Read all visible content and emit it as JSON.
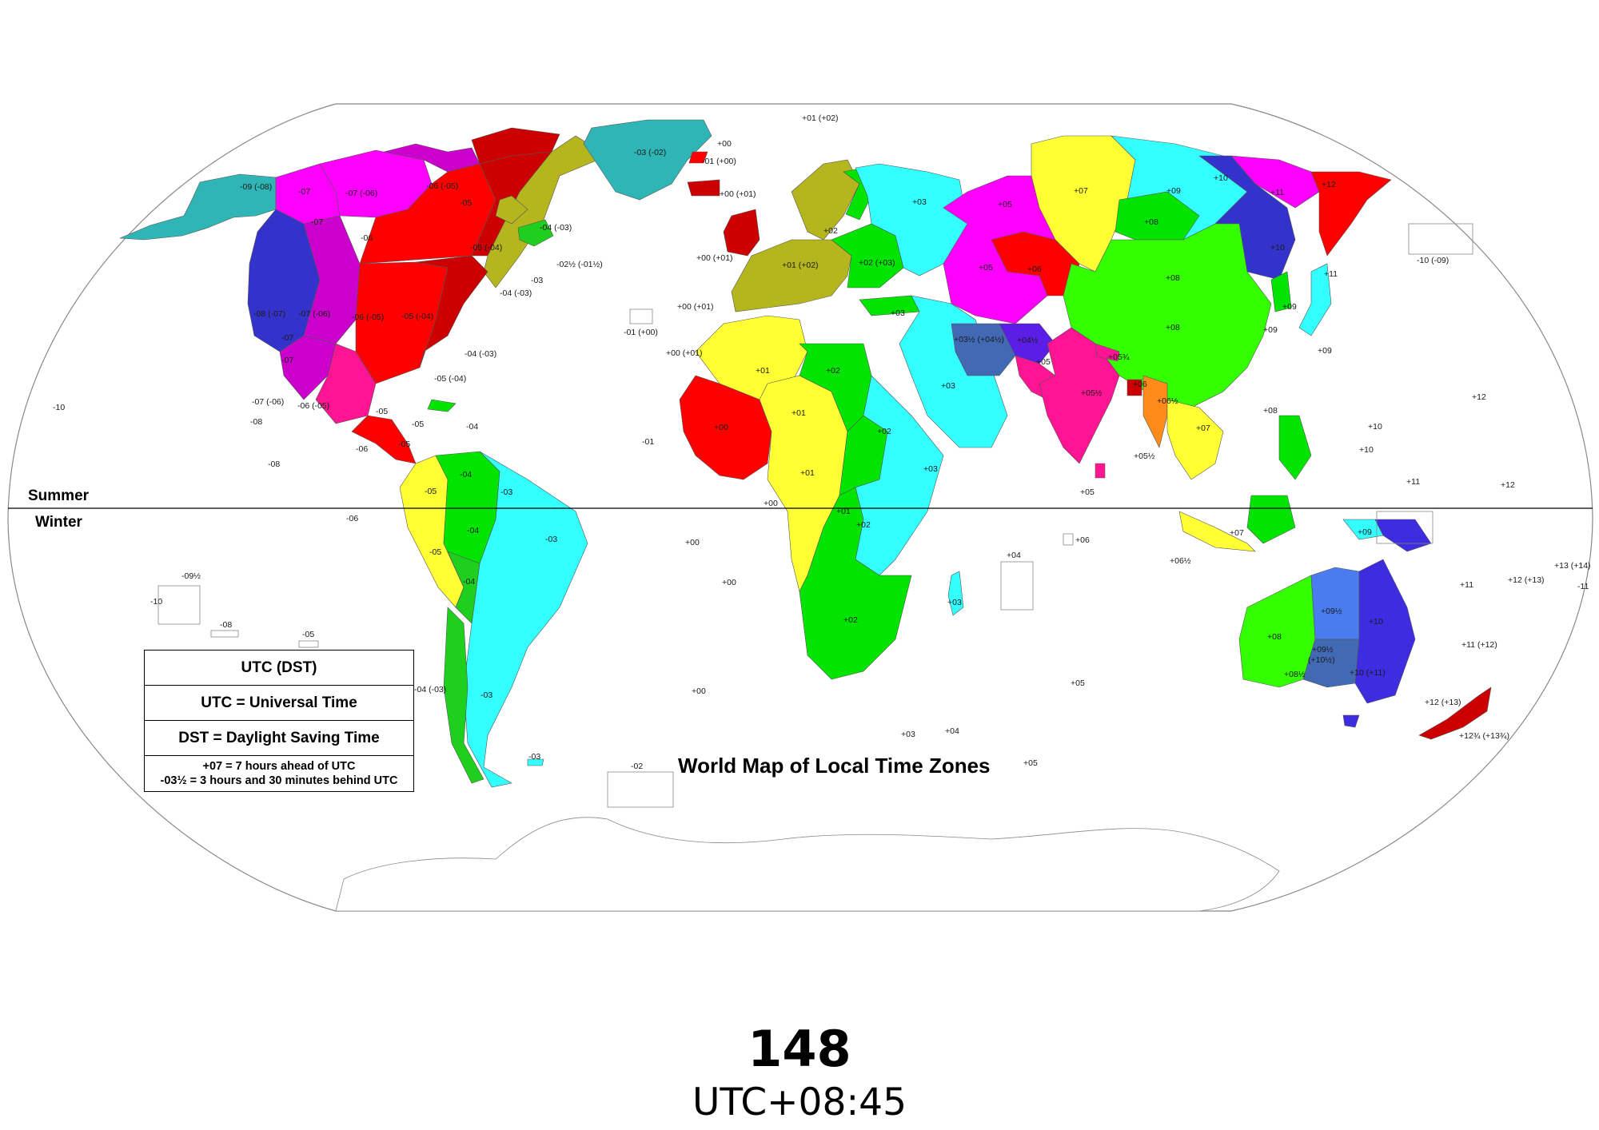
{
  "map": {
    "title": "World Map of Local Time Zones",
    "hemisphere": {
      "north": "Summer",
      "south": "Winter"
    },
    "colors": {
      "teal": "#2fb5b5",
      "magenta": "#ff00ff",
      "blue": "#3333cc",
      "purple": "#cc00cc",
      "red": "#ff0000",
      "darkred": "#cc0000",
      "olive": "#b5b51d",
      "green": "#00e400",
      "lime": "#33ff00",
      "yellow": "#ffff33",
      "cyan": "#33ffff",
      "pink": "#ff1493",
      "steel": "#4169b4",
      "orange": "#ff8c1a",
      "violet": "#5a1ee6",
      "indigo": "#3d2ce0",
      "lightblue": "#4a7cf0",
      "deepgreen": "#1ecf1e"
    },
    "zone_labels": [
      {
        "t": "+01 (+02)"
      },
      {
        "t": "-09 (-08)"
      },
      {
        "t": "-07"
      },
      {
        "t": "-07 (-06)"
      },
      {
        "t": "-06 (-05)"
      },
      {
        "t": "-03 (-02)"
      },
      {
        "t": "+00"
      },
      {
        "t": "-01 (+00)"
      },
      {
        "t": "+00 (+01)"
      },
      {
        "t": "-05"
      },
      {
        "t": "-07"
      },
      {
        "t": "-06"
      },
      {
        "t": "-04 (-03)"
      },
      {
        "t": "-05 (-04)"
      },
      {
        "t": "-02½ (-01½)"
      },
      {
        "t": "-03"
      },
      {
        "t": "-04 (-03)"
      },
      {
        "t": "+00 (+01)"
      },
      {
        "t": "+01 (+02)"
      },
      {
        "t": "+02"
      },
      {
        "t": "+02 (+03)"
      },
      {
        "t": "+03"
      },
      {
        "t": "+03"
      },
      {
        "t": "+05"
      },
      {
        "t": "+05"
      },
      {
        "t": "+06"
      },
      {
        "t": "+07"
      },
      {
        "t": "+08"
      },
      {
        "t": "+08"
      },
      {
        "t": "+08"
      },
      {
        "t": "+09"
      },
      {
        "t": "+10"
      },
      {
        "t": "+10"
      },
      {
        "t": "+11"
      },
      {
        "t": "+12"
      },
      {
        "t": "-10 (-09)"
      },
      {
        "t": "+11"
      },
      {
        "t": "+09"
      },
      {
        "t": "+09"
      },
      {
        "t": "+09"
      },
      {
        "t": "-08 (-07)"
      },
      {
        "t": "-07 (-06)"
      },
      {
        "t": "-06 (-05)"
      },
      {
        "t": "-05 (-04)"
      },
      {
        "t": "-07"
      },
      {
        "t": "-07"
      },
      {
        "t": "+00 (+01)"
      },
      {
        "t": "-01 (+00)"
      },
      {
        "t": "-04 (-03)"
      },
      {
        "t": "-05 (-04)"
      },
      {
        "t": "+00 (+01)"
      },
      {
        "t": "+01"
      },
      {
        "t": "+02"
      },
      {
        "t": "+03"
      },
      {
        "t": "+03½ (+04½)"
      },
      {
        "t": "+04½"
      },
      {
        "t": "+05"
      },
      {
        "t": "+05¾"
      },
      {
        "t": "+05½"
      },
      {
        "t": "+06"
      },
      {
        "t": "+06½"
      },
      {
        "t": "+07"
      },
      {
        "t": "+08"
      },
      {
        "t": "+12"
      },
      {
        "t": "-10"
      },
      {
        "t": "-07 (-06)"
      },
      {
        "t": "-08"
      },
      {
        "t": "-06 (-05)"
      },
      {
        "t": "-05"
      },
      {
        "t": "-05"
      },
      {
        "t": "-04"
      },
      {
        "t": "-06"
      },
      {
        "t": "-05"
      },
      {
        "t": "-08"
      },
      {
        "t": "+00"
      },
      {
        "t": "+01"
      },
      {
        "t": "-01"
      },
      {
        "t": "+02"
      },
      {
        "t": "+03"
      },
      {
        "t": "+01"
      },
      {
        "t": "+05½"
      },
      {
        "t": "+10"
      },
      {
        "t": "+10"
      },
      {
        "t": "+11"
      },
      {
        "t": "+12"
      },
      {
        "t": "-04"
      },
      {
        "t": "-03"
      },
      {
        "t": "-05"
      },
      {
        "t": "-04"
      },
      {
        "t": "-03"
      },
      {
        "t": "-06"
      },
      {
        "t": "+00"
      },
      {
        "t": "+01"
      },
      {
        "t": "+02"
      },
      {
        "t": "+05"
      },
      {
        "t": "+06"
      },
      {
        "t": "+09"
      },
      {
        "t": "+07"
      },
      {
        "t": "+00"
      },
      {
        "t": "+04"
      },
      {
        "t": "+06½"
      },
      {
        "t": "-05"
      },
      {
        "t": "-04"
      },
      {
        "t": "-09½"
      },
      {
        "t": "-10"
      },
      {
        "t": "-08"
      },
      {
        "t": "+00"
      },
      {
        "t": "+03"
      },
      {
        "t": "+09½"
      },
      {
        "t": "+10"
      },
      {
        "t": "+13 (+14)"
      },
      {
        "t": "-11"
      },
      {
        "t": "+12 (+13)"
      },
      {
        "t": "+11"
      },
      {
        "t": "-05"
      },
      {
        "t": "+02"
      },
      {
        "t": "+08"
      },
      {
        "t": "+09½"
      },
      {
        "t": "(+10½)"
      },
      {
        "t": "+10 (+11)"
      },
      {
        "t": "+11 (+12)"
      },
      {
        "t": "-04 (-03)"
      },
      {
        "t": "-03"
      },
      {
        "t": "+05"
      },
      {
        "t": "+00"
      },
      {
        "t": "+08½"
      },
      {
        "t": "+12 (+13)"
      },
      {
        "t": "+03"
      },
      {
        "t": "+04"
      },
      {
        "t": "-03"
      },
      {
        "t": "-02"
      },
      {
        "t": "+05"
      },
      {
        "t": "+12¾ (+13¾)"
      }
    ],
    "legend": {
      "header": "UTC (DST)",
      "utc": "UTC = Universal Time",
      "dst": "DST = Daylight Saving Time",
      "example1": "+07 = 7 hours ahead of UTC",
      "example2": "-03½ = 3 hours and 30 minutes behind UTC"
    }
  },
  "caption": {
    "number": "148",
    "zone": "UTC+08:45"
  }
}
